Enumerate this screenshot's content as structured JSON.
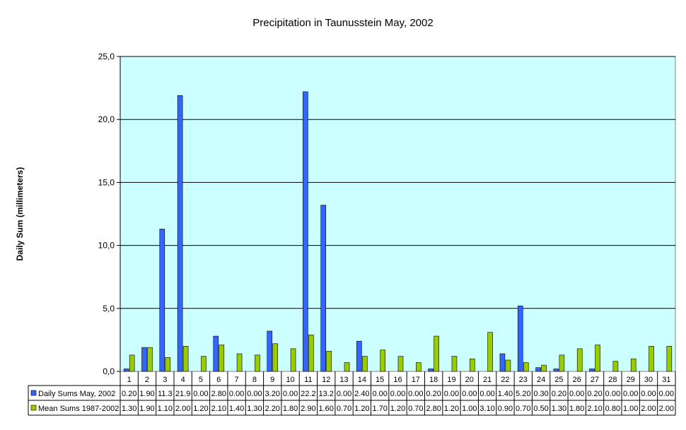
{
  "chart_data": {
    "type": "bar",
    "title": "Precipitation in Taunusstein May, 2002",
    "xlabel": "",
    "ylabel": "Daily Sum (millimeters)",
    "ylim": [
      0,
      25
    ],
    "yticks": [
      "0,0",
      "5,0",
      "10,0",
      "15,0",
      "20,0",
      "25,0"
    ],
    "ytick_values": [
      0,
      5,
      10,
      15,
      20,
      25
    ],
    "grid": true,
    "legend_placement": "data-table-left",
    "plot_background": "#ccffff",
    "categories": [
      "1",
      "2",
      "3",
      "4",
      "5",
      "6",
      "7",
      "8",
      "9",
      "10",
      "11",
      "12",
      "13",
      "14",
      "15",
      "16",
      "17",
      "18",
      "19",
      "20",
      "21",
      "22",
      "23",
      "24",
      "25",
      "26",
      "27",
      "28",
      "29",
      "30",
      "31"
    ],
    "series": [
      {
        "name": "Daily Sums May, 2002",
        "color": "#3366ff",
        "values": [
          0.2,
          1.9,
          11.3,
          21.9,
          0.0,
          2.8,
          0.0,
          0.0,
          3.2,
          0.0,
          22.2,
          13.2,
          0.0,
          2.4,
          0.0,
          0.0,
          0.0,
          0.2,
          0.0,
          0.0,
          0.0,
          1.4,
          5.2,
          0.3,
          0.2,
          0.0,
          0.2,
          0.0,
          0.0,
          0.0,
          0.0
        ],
        "labels": [
          "0.20",
          "1.90",
          "11.3",
          "21.9",
          "0.00",
          "2.80",
          "0.00",
          "0.00",
          "3.20",
          "0.00",
          "22.2",
          "13.2",
          "0.00",
          "2.40",
          "0.00",
          "0.00",
          "0.00",
          "0.20",
          "0.00",
          "0.00",
          "0.00",
          "1.40",
          "5.20",
          "0.30",
          "0.20",
          "0.00",
          "0.20",
          "0.00",
          "0.00",
          "0.00",
          "0.00"
        ]
      },
      {
        "name": "Mean Sums 1987-2002",
        "color": "#99cc00",
        "values": [
          1.3,
          1.9,
          1.1,
          2.0,
          1.2,
          2.1,
          1.4,
          1.3,
          2.2,
          1.8,
          2.9,
          1.6,
          0.7,
          1.2,
          1.7,
          1.2,
          0.7,
          2.8,
          1.2,
          1.0,
          3.1,
          0.9,
          0.7,
          0.5,
          1.3,
          1.8,
          2.1,
          0.8,
          1.0,
          2.0,
          2.0
        ],
        "labels": [
          "1.30",
          "1.90",
          "1.10",
          "2.00",
          "1.20",
          "2.10",
          "1.40",
          "1.30",
          "2.20",
          "1.80",
          "2.90",
          "1.60",
          "0.70",
          "1.20",
          "1.70",
          "1.20",
          "0.70",
          "2.80",
          "1.20",
          "1.00",
          "3.10",
          "0.90",
          "0.70",
          "0.50",
          "1.30",
          "1.80",
          "2.10",
          "0.80",
          "1.00",
          "2.00",
          "2.00"
        ]
      }
    ]
  }
}
